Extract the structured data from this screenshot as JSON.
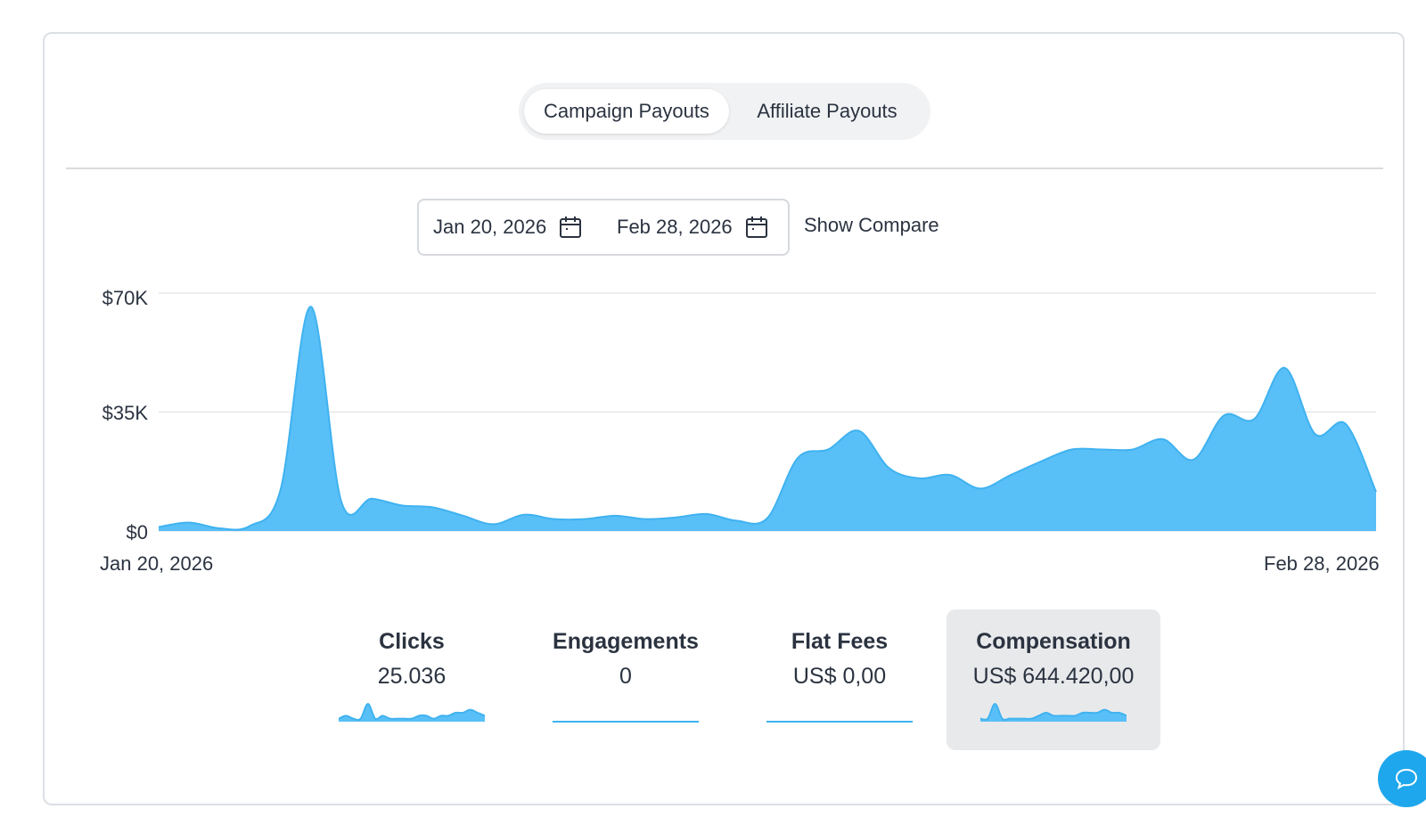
{
  "tabs": {
    "campaign_payouts": "Campaign Payouts",
    "affiliate_payouts": "Affiliate Payouts",
    "active": "campaign_payouts"
  },
  "date_range": {
    "start": "Jan 20, 2026",
    "end": "Feb 28, 2026"
  },
  "show_compare_label": "Show Compare",
  "colors": {
    "area_fill": "#59bff7",
    "area_stroke": "#3fb2f0",
    "grid": "#e6e8eb",
    "accent": "#1ea7ec"
  },
  "icons": {
    "calendar": "calendar-icon",
    "chat": "chat-bubble-icon"
  },
  "chart_data": {
    "type": "area",
    "x_start": "Jan 20, 2026",
    "x_end": "Feb 28, 2026",
    "x_tick_labels": [
      "Jan 20, 2026",
      "Feb 28, 2026"
    ],
    "y_tick_labels": [
      "$70K",
      "$35K",
      "$0"
    ],
    "y_ticks": [
      70000,
      35000,
      0
    ],
    "ylim": [
      0,
      70000
    ],
    "grid": true,
    "series": [
      {
        "values": [
          1200,
          2500,
          800,
          1500,
          12000,
          66000,
          8700,
          9500,
          7500,
          7000,
          4500,
          2000,
          4800,
          3500,
          3500,
          4500,
          3500,
          4000,
          5000,
          3000,
          3800,
          21500,
          24000,
          29500,
          18500,
          15500,
          16500,
          12500,
          16500,
          20500,
          24000,
          24000,
          24000,
          27000,
          21000,
          34000,
          33000,
          48000,
          28500,
          31500,
          11500
        ]
      }
    ]
  },
  "metrics": [
    {
      "title": "Clicks",
      "value": "25.036",
      "selected": false,
      "sparkline": [
        1,
        2,
        1,
        1,
        6,
        1,
        2,
        1,
        1,
        1,
        1,
        2,
        2,
        1,
        2,
        2,
        3,
        3,
        4,
        3,
        2
      ]
    },
    {
      "title": "Engagements",
      "value": "0",
      "selected": false,
      "sparkline": [
        0,
        0
      ]
    },
    {
      "title": "Flat Fees",
      "value": "US$ 0,00",
      "selected": false,
      "sparkline": [
        0,
        0
      ]
    },
    {
      "title": "Compensation",
      "value": "US$ 644.420,00",
      "selected": true,
      "sparkline": [
        1,
        1,
        6,
        1,
        1,
        1,
        1,
        1,
        2,
        3,
        2,
        2,
        2,
        2,
        3,
        3,
        3,
        4,
        3,
        3,
        2
      ]
    }
  ]
}
